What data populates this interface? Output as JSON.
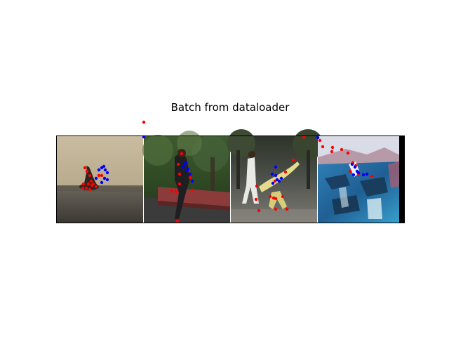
{
  "chart_data": {
    "type": "scatter",
    "title": "Batch from dataloader",
    "colors": {
      "joints_a": "#ff0000",
      "joints_b": "#0000ff"
    },
    "panels": [
      {
        "scene": "kneeling-figure-on-sand",
        "red": [
          [
            40,
            45
          ],
          [
            43,
            50
          ],
          [
            47,
            56
          ],
          [
            49,
            64
          ],
          [
            50,
            70
          ],
          [
            47,
            76
          ],
          [
            42,
            74
          ],
          [
            37,
            74
          ],
          [
            38,
            68
          ],
          [
            45,
            68
          ],
          [
            52,
            68
          ],
          [
            56,
            72
          ],
          [
            60,
            56
          ],
          [
            64,
            56
          ]
        ],
        "blue": [
          [
            56,
            60
          ],
          [
            60,
            48
          ],
          [
            64,
            45
          ],
          [
            67,
            43
          ],
          [
            69,
            48
          ],
          [
            72,
            52
          ],
          [
            68,
            60
          ],
          [
            64,
            66
          ],
          [
            72,
            62
          ]
        ]
      },
      {
        "scene": "person-sitting-on-wall",
        "red": [
          [
            0,
            -20
          ],
          [
            54,
            25
          ],
          [
            49,
            40
          ],
          [
            51,
            54
          ],
          [
            51,
            68
          ],
          [
            46,
            79
          ],
          [
            40,
            78
          ],
          [
            64,
            49
          ],
          [
            66,
            59
          ],
          [
            69,
            77
          ],
          [
            48,
            121
          ]
        ],
        "blue": [
          [
            0,
            1
          ],
          [
            56,
            44
          ],
          [
            60,
            38
          ],
          [
            63,
            47
          ],
          [
            66,
            54
          ],
          [
            62,
            49
          ],
          [
            69,
            64
          ],
          [
            58,
            40
          ]
        ]
      },
      {
        "scene": "breakdancer-handstand",
        "red": [
          [
            104,
            1
          ],
          [
            89,
            34
          ],
          [
            78,
            51
          ],
          [
            63,
            64
          ],
          [
            37,
            71
          ],
          [
            56,
            86
          ],
          [
            64,
            89
          ],
          [
            61,
            88
          ],
          [
            64,
            104
          ],
          [
            80,
            104
          ],
          [
            74,
            86
          ],
          [
            36,
            90
          ],
          [
            40,
            106
          ]
        ],
        "blue": [
          [
            124,
            1
          ],
          [
            64,
            44
          ],
          [
            59,
            54
          ],
          [
            64,
            56
          ],
          [
            72,
            60
          ],
          [
            66,
            62
          ],
          [
            60,
            67
          ],
          [
            69,
            64
          ]
        ]
      },
      {
        "scene": "person-on-waterfall-rocks",
        "red": [
          [
            3,
            6
          ],
          [
            7,
            15
          ],
          [
            21,
            16
          ],
          [
            34,
            19
          ],
          [
            43,
            24
          ],
          [
            50,
            38
          ],
          [
            54,
            42
          ],
          [
            46,
            50
          ],
          [
            58,
            54
          ],
          [
            20,
            22
          ],
          [
            77,
            57
          ]
        ],
        "blue": [
          [
            0,
            2
          ],
          [
            49,
            40
          ],
          [
            53,
            44
          ],
          [
            56,
            50
          ],
          [
            58,
            52
          ],
          [
            51,
            55
          ],
          [
            65,
            55
          ],
          [
            70,
            54
          ]
        ]
      }
    ]
  }
}
